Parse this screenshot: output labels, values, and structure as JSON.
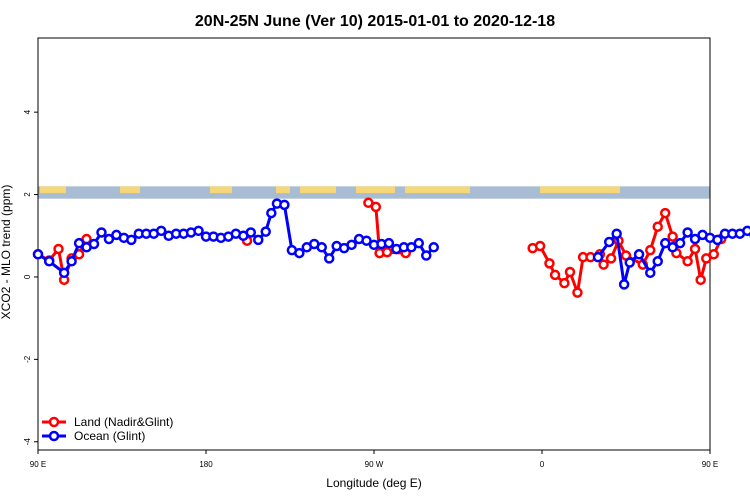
{
  "chart_data": {
    "type": "line",
    "title": "20N-25N June (Ver 10)   2015-01-01 to 2020-12-18",
    "xlabel": "Longitude (deg E)",
    "ylabel": "XCO2 - MLO trend (ppm)",
    "xlim": [
      90,
      450
    ],
    "ylim": [
      -4.2,
      5.8
    ],
    "x_ticks": [
      {
        "value": 90,
        "label": "90 E"
      },
      {
        "value": 180,
        "label": "180"
      },
      {
        "value": 270,
        "label": "90 W"
      },
      {
        "value": 360,
        "label": "0"
      },
      {
        "value": 450,
        "label": "90 E"
      },
      {
        "value": 540,
        "label": "180"
      }
    ],
    "y_ticks": [
      -4,
      -2,
      0,
      2,
      4
    ],
    "land_band": {
      "y_range": [
        1.9,
        2.2
      ],
      "color": "#a8bcd4",
      "land_color": "#f5d77a"
    },
    "series": [
      {
        "name": "Land (Nadir&Glint)",
        "color": "#ff0000",
        "points": [
          [
            90,
            0.55
          ],
          [
            96,
            0.4
          ],
          [
            101,
            0.68
          ],
          [
            104,
            -0.07
          ],
          [
            108,
            0.45
          ],
          [
            112,
            0.55
          ],
          [
            116,
            0.92
          ],
          [
            202,
            0.88
          ],
          [
            267,
            1.8
          ],
          [
            271,
            1.7
          ],
          [
            273,
            0.58
          ],
          [
            277,
            0.6
          ],
          [
            287,
            0.58
          ],
          [
            355,
            0.7
          ],
          [
            359,
            0.75
          ],
          [
            364,
            0.33
          ],
          [
            367,
            0.05
          ],
          [
            372,
            -0.15
          ],
          [
            375,
            0.12
          ],
          [
            379,
            -0.38
          ],
          [
            382,
            0.48
          ],
          [
            386,
            0.48
          ],
          [
            391,
            0.55
          ],
          [
            393,
            0.3
          ],
          [
            397,
            0.45
          ],
          [
            401,
            0.88
          ],
          [
            405,
            0.52
          ],
          [
            414,
            0.3
          ],
          [
            418,
            0.65
          ],
          [
            422,
            1.22
          ],
          [
            426,
            1.55
          ],
          [
            430,
            0.98
          ],
          [
            432,
            0.58
          ],
          [
            438,
            0.38
          ],
          [
            442,
            0.68
          ],
          [
            445,
            -0.07
          ],
          [
            448,
            0.45
          ],
          [
            452,
            0.55
          ],
          [
            456,
            0.92
          ]
        ]
      },
      {
        "name": "Ocean (Glint)",
        "color": "#0000ff",
        "points": [
          [
            90,
            0.55
          ],
          [
            96,
            0.38
          ],
          [
            104,
            0.1
          ],
          [
            108,
            0.38
          ],
          [
            112,
            0.82
          ],
          [
            116,
            0.72
          ],
          [
            120,
            0.8
          ],
          [
            124,
            1.08
          ],
          [
            128,
            0.92
          ],
          [
            132,
            1.02
          ],
          [
            136,
            0.95
          ],
          [
            140,
            0.9
          ],
          [
            144,
            1.05
          ],
          [
            148,
            1.05
          ],
          [
            152,
            1.05
          ],
          [
            156,
            1.12
          ],
          [
            160,
            1.0
          ],
          [
            164,
            1.05
          ],
          [
            168,
            1.05
          ],
          [
            172,
            1.08
          ],
          [
            176,
            1.12
          ],
          [
            180,
            0.98
          ],
          [
            184,
            0.98
          ],
          [
            188,
            0.95
          ],
          [
            192,
            0.98
          ],
          [
            196,
            1.05
          ],
          [
            200,
            1.0
          ],
          [
            204,
            1.08
          ],
          [
            208,
            0.9
          ],
          [
            212,
            1.1
          ],
          [
            215,
            1.55
          ],
          [
            218,
            1.78
          ],
          [
            222,
            1.75
          ],
          [
            226,
            0.65
          ],
          [
            230,
            0.58
          ],
          [
            234,
            0.72
          ],
          [
            238,
            0.8
          ],
          [
            242,
            0.72
          ],
          [
            246,
            0.45
          ],
          [
            250,
            0.75
          ],
          [
            254,
            0.7
          ],
          [
            258,
            0.78
          ],
          [
            262,
            0.92
          ],
          [
            266,
            0.88
          ],
          [
            270,
            0.78
          ],
          [
            274,
            0.8
          ],
          [
            278,
            0.82
          ],
          [
            282,
            0.68
          ],
          [
            286,
            0.72
          ],
          [
            290,
            0.72
          ],
          [
            294,
            0.82
          ],
          [
            298,
            0.52
          ],
          [
            302,
            0.72
          ],
          [
            390,
            0.48
          ],
          [
            396,
            0.85
          ],
          [
            400,
            1.05
          ],
          [
            404,
            -0.18
          ],
          [
            407,
            0.35
          ],
          [
            412,
            0.55
          ],
          [
            418,
            0.1
          ],
          [
            422,
            0.38
          ],
          [
            426,
            0.82
          ],
          [
            430,
            0.72
          ],
          [
            434,
            0.82
          ],
          [
            438,
            1.08
          ],
          [
            442,
            0.92
          ],
          [
            446,
            1.02
          ],
          [
            450,
            0.95
          ],
          [
            454,
            0.9
          ],
          [
            458,
            1.05
          ],
          [
            462,
            1.05
          ],
          [
            466,
            1.05
          ],
          [
            470,
            1.12
          ],
          [
            474,
            1.0
          ]
        ]
      }
    ]
  }
}
